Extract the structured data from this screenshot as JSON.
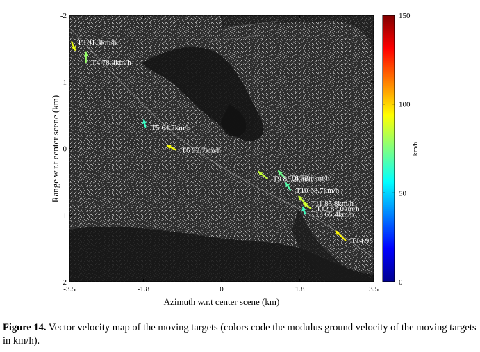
{
  "chart_data": {
    "type": "scatter",
    "background": "SAR image (grayscale)",
    "xlabel": "Azimuth w.r.t center scene (km)",
    "ylabel": "Range w.r.t center scene (km)",
    "xlim": [
      -3.5,
      3.5
    ],
    "ylim": [
      -2,
      2
    ],
    "y_inverted": true,
    "x_ticks": [
      "-3.5",
      "-1.8",
      "0",
      "1.8",
      "3.5"
    ],
    "x_tick_values": [
      -3.5,
      -1.8,
      0,
      1.8,
      3.5
    ],
    "y_ticks": [
      "-2",
      "-1",
      "0",
      "1",
      "2"
    ],
    "y_tick_values": [
      -2,
      -1,
      0,
      1,
      2
    ],
    "colorbar": {
      "label": "km/h",
      "min": 0,
      "max": 150,
      "ticks": [
        "0",
        "50",
        "100",
        "150"
      ],
      "tick_values": [
        0,
        50,
        100,
        150
      ],
      "colormap": "jet"
    },
    "targets": [
      {
        "label": "T3",
        "speed_text": "91.3km/h",
        "speed": 91.3,
        "x": -3.45,
        "y": -1.6,
        "dx": 0.08,
        "dy": 0.12
      },
      {
        "label": "T4",
        "speed_text": "78.4km/h",
        "speed": 78.4,
        "x": -3.12,
        "y": -1.3,
        "dx": 0.0,
        "dy": -0.14
      },
      {
        "label": "T5",
        "speed_text": "64.7km/h",
        "speed": 64.7,
        "x": -1.75,
        "y": -0.32,
        "dx": -0.04,
        "dy": -0.11
      },
      {
        "label": "T6",
        "speed_text": "92.7km/h",
        "speed": 92.7,
        "x": -1.05,
        "y": 0.02,
        "dx": -0.2,
        "dy": -0.06
      },
      {
        "label": "T8",
        "speed_text": "72.8km/h",
        "speed": 72.8,
        "x": 1.45,
        "y": 0.44,
        "dx": -0.14,
        "dy": -0.1
      },
      {
        "label": "T9",
        "speed_text": "85.2km/h",
        "speed": 85.2,
        "x": 1.05,
        "y": 0.45,
        "dx": -0.2,
        "dy": -0.1
      },
      {
        "label": "T10",
        "speed_text": "68.7km/h",
        "speed": 68.7,
        "x": 1.58,
        "y": 0.62,
        "dx": -0.1,
        "dy": -0.1
      },
      {
        "label": "T11",
        "speed_text": "85.8km/h",
        "speed": 85.8,
        "x": 1.92,
        "y": 0.82,
        "dx": -0.14,
        "dy": -0.1
      },
      {
        "label": "T12",
        "speed_text": "87.0km/h",
        "speed": 87.0,
        "x": 2.05,
        "y": 0.9,
        "dx": -0.16,
        "dy": -0.08
      },
      {
        "label": "T13",
        "speed_text": "65.4km/h",
        "speed": 65.4,
        "x": 1.92,
        "y": 0.98,
        "dx": -0.05,
        "dy": -0.1
      },
      {
        "label": "T14",
        "speed_text": "95",
        "speed": 95,
        "x": 2.85,
        "y": 1.38,
        "dx": -0.22,
        "dy": -0.14
      }
    ]
  },
  "caption": {
    "prefix": "Figure 14.",
    "text": " Vector velocity map of the moving targets (colors code the modulus ground velocity of the moving targets in km/h)."
  }
}
